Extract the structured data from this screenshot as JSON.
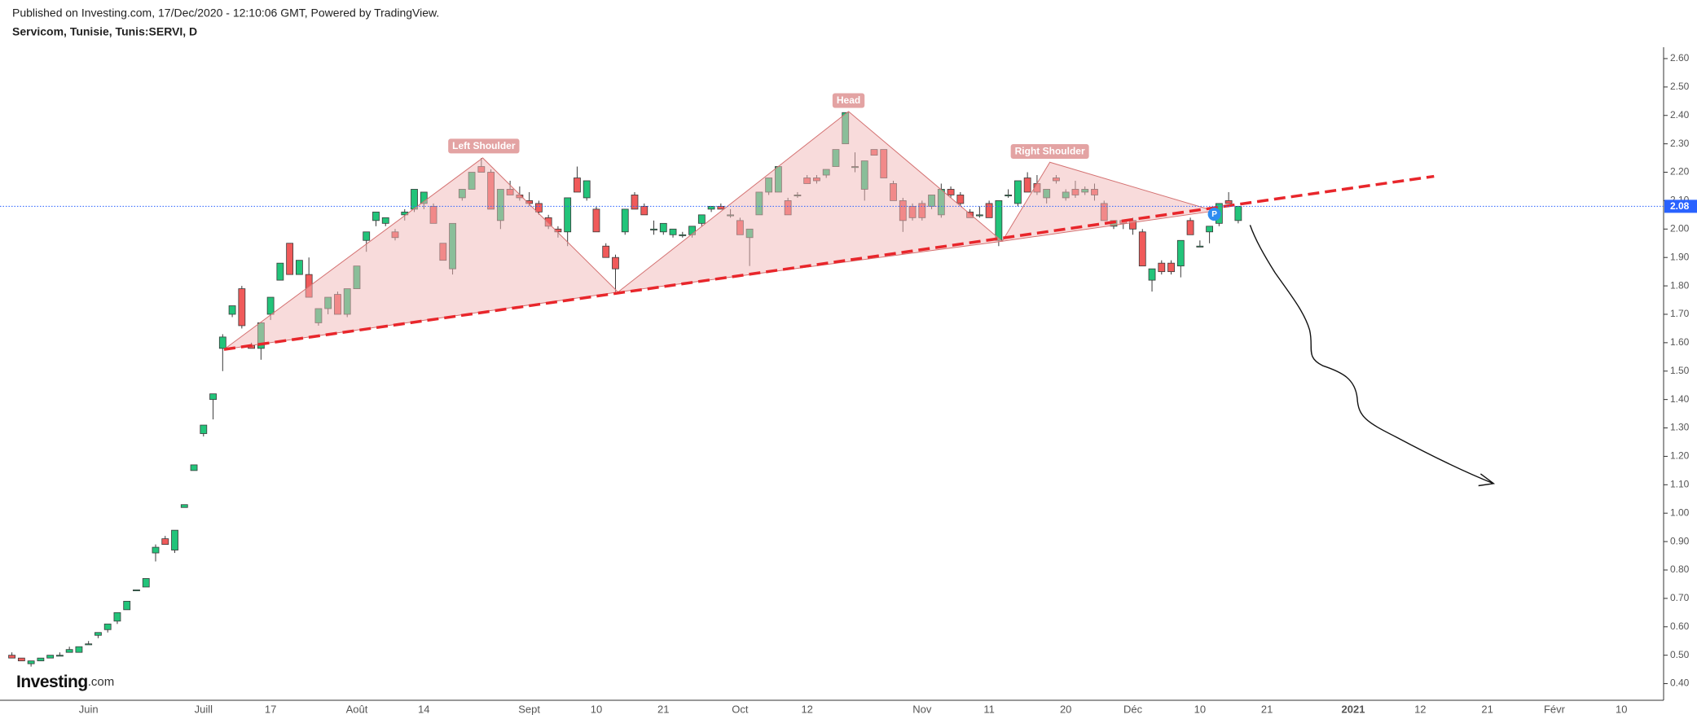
{
  "chart_data": {
    "type": "candlestick",
    "published": "Published on Investing.com, 17/Dec/2020 - 12:10:06 GMT, Powered by TradingView.",
    "title": "Servicom, Tunisie, Tunis:SERVI, D",
    "logo_main": "Investing",
    "logo_suffix": ".com",
    "annotations": [
      "Left Shoulder",
      "Head",
      "Right Shoulder"
    ],
    "badge": "P",
    "last_price": 2.08,
    "up_color": "#22c47a",
    "down_color": "#f05a5a",
    "outline_color": "#3a3a3a",
    "price_line_color": "#2962ff",
    "ylim": [
      0.35,
      2.64
    ],
    "yticks": [
      {
        "value": 0.4,
        "label": "0.40"
      },
      {
        "value": 0.5,
        "label": "0.50"
      },
      {
        "value": 0.6,
        "label": "0.60"
      },
      {
        "value": 0.7,
        "label": "0.70"
      },
      {
        "value": 0.8,
        "label": "0.80"
      },
      {
        "value": 0.9,
        "label": "0.90"
      },
      {
        "value": 1.0,
        "label": "1.00"
      },
      {
        "value": 1.1,
        "label": "1.10"
      },
      {
        "value": 1.2,
        "label": "1.20"
      },
      {
        "value": 1.3,
        "label": "1.30"
      },
      {
        "value": 1.4,
        "label": "1.40"
      },
      {
        "value": 1.5,
        "label": "1.50"
      },
      {
        "value": 1.6,
        "label": "1.60"
      },
      {
        "value": 1.7,
        "label": "1.70"
      },
      {
        "value": 1.8,
        "label": "1.80"
      },
      {
        "value": 1.9,
        "label": "1.90"
      },
      {
        "value": 2.0,
        "label": "2.00"
      },
      {
        "value": 2.1,
        "label": "2.10"
      },
      {
        "value": 2.2,
        "label": "2.20"
      },
      {
        "value": 2.3,
        "label": "2.30"
      },
      {
        "value": 2.4,
        "label": "2.40"
      },
      {
        "value": 2.5,
        "label": "2.50"
      },
      {
        "value": 2.6,
        "label": "2.60"
      }
    ],
    "categories": [
      null,
      null,
      null,
      null,
      null,
      null,
      null,
      null,
      "Juin",
      null,
      null,
      null,
      null,
      null,
      null,
      null,
      null,
      null,
      null,
      null,
      "Juill",
      null,
      null,
      null,
      null,
      null,
      null,
      "17",
      null,
      null,
      null,
      null,
      null,
      null,
      null,
      null,
      "Août",
      null,
      null,
      null,
      null,
      null,
      null,
      "14",
      null,
      null,
      null,
      null,
      null,
      null,
      null,
      null,
      null,
      null,
      "Sept",
      null,
      null,
      null,
      null,
      null,
      null,
      "10",
      null,
      null,
      null,
      null,
      null,
      null,
      "21",
      null,
      null,
      null,
      null,
      null,
      null,
      null,
      "Oct",
      null,
      null,
      null,
      null,
      null,
      null,
      "12",
      null,
      null,
      null,
      null,
      null,
      null,
      null,
      null,
      null,
      null,
      null,
      "Nov",
      null,
      null,
      null,
      null,
      null,
      null,
      "11",
      null,
      null,
      null,
      null,
      null,
      null,
      null,
      "20",
      null,
      null,
      null,
      null,
      null,
      null,
      "Déc",
      null,
      null,
      null,
      null,
      null,
      null,
      "10",
      null,
      null,
      null,
      null,
      null,
      null,
      "21",
      null,
      null,
      null,
      null,
      null,
      null,
      null,
      null,
      "2021",
      null,
      null,
      null,
      null,
      null,
      null,
      "12",
      null,
      null,
      null,
      null,
      null,
      null,
      "21",
      null,
      null,
      null,
      null,
      null,
      null,
      "Févr",
      null,
      null,
      null,
      null,
      null,
      null,
      "10",
      null,
      null,
      null,
      null
    ],
    "open": [
      0.5,
      0.49,
      0.47,
      0.48,
      0.49,
      0.5,
      0.51,
      0.51,
      0.54,
      0.57,
      0.59,
      0.62,
      0.66,
      0.73,
      0.74,
      0.86,
      0.91,
      0.87,
      1.02,
      1.15,
      1.28,
      1.4,
      1.58,
      1.7,
      1.79,
      1.59,
      1.58,
      1.7,
      1.82,
      1.95,
      1.84,
      1.84,
      1.67,
      1.72,
      1.77,
      1.7,
      1.79,
      1.96,
      2.03,
      2.02,
      1.99,
      2.05,
      2.07,
      2.09,
      2.08,
      1.95,
      1.86,
      2.11,
      2.14,
      2.22,
      2.2,
      2.03,
      2.14,
      2.12,
      2.1,
      2.09,
      2.04,
      2.0,
      1.99,
      2.18,
      2.11,
      2.07,
      1.94,
      1.9,
      1.99,
      2.12,
      2.08,
      2.0,
      1.99,
      1.98,
      1.98,
      1.98,
      2.02,
      2.07,
      2.08,
      2.05,
      2.03,
      1.97,
      2.05,
      2.13,
      2.13,
      2.1,
      2.12,
      2.18,
      2.18,
      2.19,
      2.22,
      2.3,
      2.22,
      2.14,
      2.28,
      2.28,
      2.16,
      2.1,
      2.08,
      2.09,
      2.08,
      2.05,
      2.14,
      2.12,
      2.06,
      2.05,
      2.09,
      1.96,
      2.12,
      2.09,
      2.18,
      2.16,
      2.11,
      2.18,
      2.11,
      2.14,
      2.13,
      2.14,
      2.09,
      2.01,
      2.03,
      2.03,
      1.99,
      1.82,
      1.88,
      1.88,
      1.87,
      2.03,
      1.94,
      1.99,
      2.02,
      2.1,
      2.03,
      null,
      null,
      null,
      null,
      null,
      null,
      null,
      null,
      null,
      null,
      null,
      null,
      null,
      null,
      null,
      null,
      null,
      null,
      null,
      null,
      null,
      null,
      null,
      null,
      null,
      null,
      null,
      null,
      null,
      null,
      null,
      null,
      null,
      null,
      null,
      null,
      null,
      null,
      null,
      null,
      null,
      null,
      null,
      null
    ],
    "high": [
      0.51,
      0.49,
      0.48,
      0.49,
      0.5,
      0.51,
      0.53,
      0.53,
      0.55,
      0.58,
      0.61,
      0.65,
      0.69,
      0.73,
      0.77,
      0.89,
      0.92,
      0.94,
      1.03,
      1.17,
      1.31,
      1.42,
      1.63,
      1.73,
      1.8,
      1.6,
      1.67,
      1.76,
      1.88,
      1.95,
      1.89,
      1.9,
      1.72,
      1.76,
      1.78,
      1.79,
      1.87,
      1.99,
      2.06,
      2.04,
      2.0,
      2.07,
      2.14,
      2.13,
      2.09,
      1.95,
      2.02,
      2.14,
      2.2,
      2.25,
      2.21,
      2.14,
      2.17,
      2.15,
      2.13,
      2.1,
      2.05,
      2.01,
      2.11,
      2.22,
      2.17,
      2.08,
      1.95,
      1.91,
      2.07,
      2.13,
      2.09,
      2.03,
      2.02,
      2.0,
      1.99,
      2.01,
      2.05,
      2.08,
      2.09,
      2.07,
      2.04,
      2.0,
      2.13,
      2.18,
      2.22,
      2.11,
      2.13,
      2.19,
      2.19,
      2.21,
      2.28,
      2.41,
      2.27,
      2.24,
      2.28,
      2.28,
      2.17,
      2.11,
      2.09,
      2.1,
      2.12,
      2.16,
      2.15,
      2.13,
      2.07,
      2.08,
      2.1,
      2.1,
      2.14,
      2.17,
      2.2,
      2.19,
      2.14,
      2.19,
      2.14,
      2.17,
      2.15,
      2.16,
      2.1,
      2.03,
      2.03,
      2.04,
      2.0,
      1.86,
      1.89,
      1.89,
      1.96,
      2.04,
      1.96,
      2.01,
      2.09,
      2.13,
      2.08,
      null,
      null,
      null,
      null,
      null,
      null,
      null,
      null,
      null,
      null,
      null,
      null,
      null,
      null,
      null,
      null,
      null,
      null,
      null,
      null,
      null,
      null,
      null,
      null,
      null,
      null,
      null,
      null,
      null,
      null,
      null,
      null,
      null,
      null,
      null,
      null,
      null,
      null,
      null,
      null,
      null,
      null,
      null,
      null
    ],
    "low": [
      0.49,
      0.48,
      0.46,
      0.48,
      0.49,
      0.5,
      0.51,
      0.51,
      0.54,
      0.56,
      0.58,
      0.61,
      0.66,
      0.73,
      0.74,
      0.83,
      0.89,
      0.86,
      1.02,
      1.15,
      1.27,
      1.33,
      1.5,
      1.69,
      1.65,
      1.58,
      1.54,
      1.68,
      1.82,
      1.84,
      1.84,
      1.76,
      1.66,
      1.7,
      1.7,
      1.69,
      1.79,
      1.92,
      2.01,
      2.01,
      1.96,
      2.03,
      2.06,
      2.07,
      2.02,
      1.89,
      1.84,
      2.1,
      2.14,
      2.2,
      2.07,
      2.0,
      2.12,
      2.1,
      2.08,
      2.05,
      2.0,
      1.97,
      1.94,
      2.13,
      2.1,
      1.99,
      1.9,
      1.77,
      1.98,
      2.07,
      2.05,
      1.98,
      1.98,
      1.97,
      1.97,
      1.97,
      2.01,
      2.06,
      2.07,
      2.04,
      1.98,
      1.87,
      2.05,
      2.12,
      2.13,
      2.05,
      2.11,
      2.16,
      2.16,
      2.18,
      2.22,
      2.3,
      2.2,
      2.1,
      2.26,
      2.18,
      2.1,
      1.99,
      2.03,
      2.03,
      2.07,
      2.04,
      2.11,
      2.08,
      2.04,
      2.04,
      2.04,
      1.94,
      2.11,
      2.08,
      2.13,
      2.12,
      2.09,
      2.16,
      2.1,
      2.11,
      2.12,
      2.1,
      2.03,
      2.0,
      2.0,
      1.98,
      1.87,
      1.78,
      1.84,
      1.84,
      1.83,
      1.98,
      1.94,
      1.95,
      2.01,
      2.09,
      2.02,
      null,
      null,
      null,
      null,
      null,
      null,
      null,
      null,
      null,
      null,
      null,
      null,
      null,
      null,
      null,
      null,
      null,
      null,
      null,
      null,
      null,
      null,
      null,
      null,
      null,
      null,
      null,
      null,
      null,
      null,
      null,
      null,
      null,
      null,
      null,
      null,
      null,
      null,
      null,
      null,
      null,
      null,
      null,
      null
    ],
    "close": [
      0.49,
      0.48,
      0.48,
      0.49,
      0.5,
      0.5,
      0.52,
      0.53,
      0.54,
      0.58,
      0.61,
      0.65,
      0.69,
      0.73,
      0.77,
      0.88,
      0.89,
      0.94,
      1.03,
      1.17,
      1.31,
      1.42,
      1.62,
      1.73,
      1.66,
      1.58,
      1.67,
      1.76,
      1.88,
      1.84,
      1.89,
      1.76,
      1.72,
      1.76,
      1.7,
      1.79,
      1.87,
      1.99,
      2.06,
      2.04,
      1.97,
      2.06,
      2.14,
      2.13,
      2.02,
      1.89,
      2.02,
      2.14,
      2.2,
      2.2,
      2.07,
      2.14,
      2.12,
      2.11,
      2.09,
      2.06,
      2.01,
      1.99,
      2.11,
      2.13,
      2.17,
      1.99,
      1.9,
      1.86,
      2.07,
      2.07,
      2.05,
      2.0,
      2.02,
      2.0,
      1.98,
      2.01,
      2.05,
      2.08,
      2.07,
      2.05,
      1.98,
      2.0,
      2.13,
      2.18,
      2.22,
      2.05,
      2.12,
      2.16,
      2.17,
      2.21,
      2.28,
      2.41,
      2.22,
      2.24,
      2.26,
      2.18,
      2.1,
      2.03,
      2.04,
      2.04,
      2.12,
      2.14,
      2.12,
      2.09,
      2.04,
      2.05,
      2.04,
      2.1,
      2.12,
      2.17,
      2.13,
      2.13,
      2.14,
      2.17,
      2.13,
      2.12,
      2.14,
      2.12,
      2.03,
      2.03,
      2.02,
      2.0,
      1.87,
      1.86,
      1.85,
      1.85,
      1.96,
      1.98,
      1.94,
      2.01,
      2.09,
      2.09,
      2.08,
      null,
      null,
      null,
      null,
      null,
      null,
      null,
      null,
      null,
      null,
      null,
      null,
      null,
      null,
      null,
      null,
      null,
      null,
      null,
      null,
      null,
      null,
      null,
      null,
      null,
      null,
      null,
      null,
      null,
      null,
      null,
      null,
      null,
      null,
      null,
      null,
      null,
      null,
      null,
      null,
      null,
      null,
      null,
      null
    ]
  }
}
